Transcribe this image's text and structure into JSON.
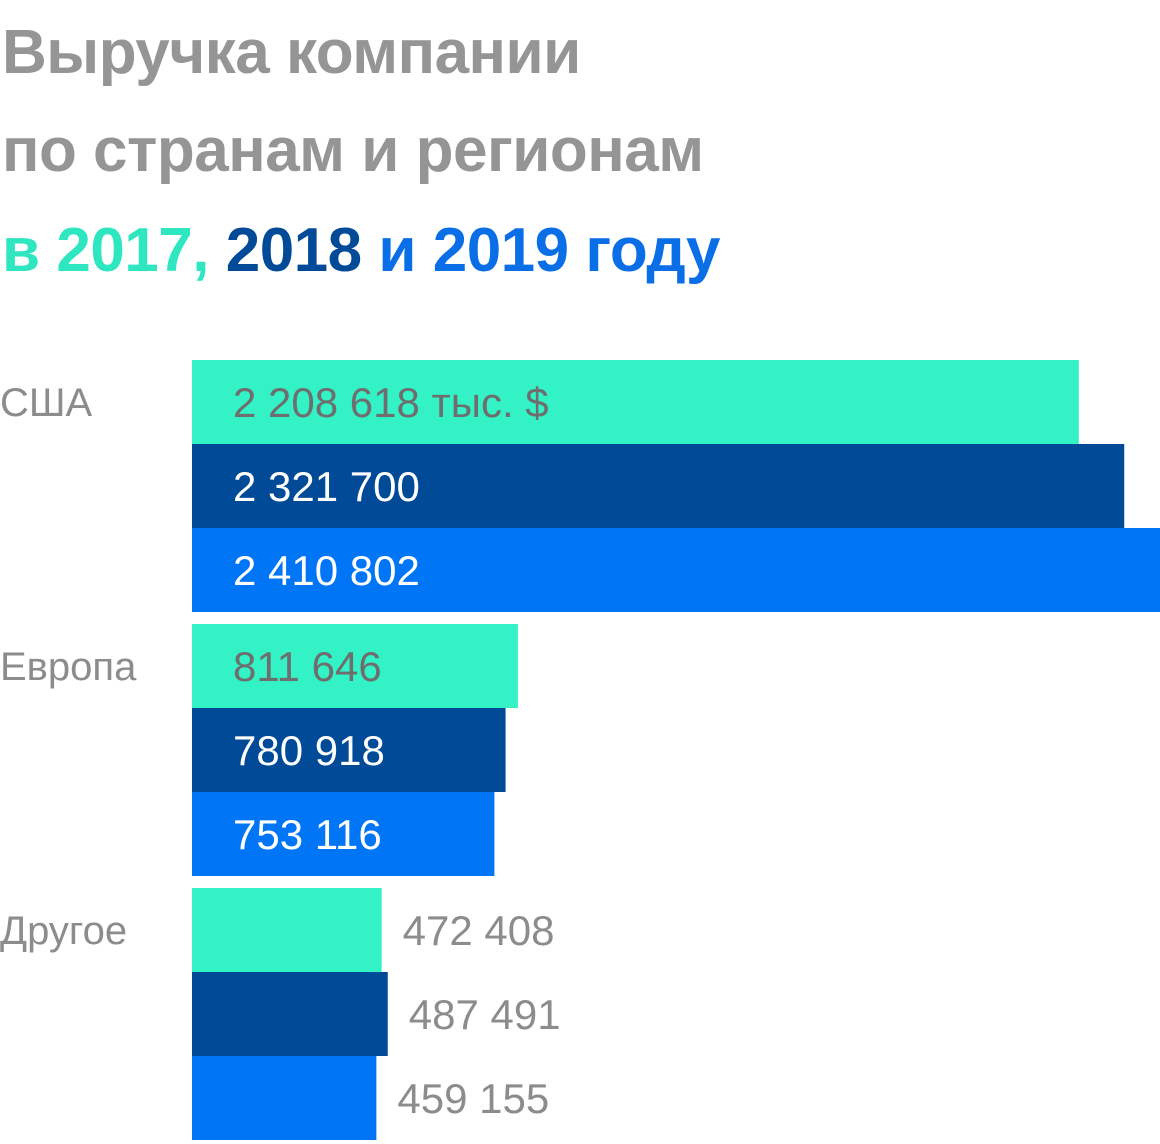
{
  "title": {
    "line1": "Выручка компании",
    "line2": "по странам и регионам",
    "line3_parts": [
      {
        "text": "в 2017, ",
        "color": "#2ee6bf"
      },
      {
        "text": "2018 ",
        "color": "#004a97"
      },
      {
        "text": "и 2019 году",
        "color": "#0a6ee6"
      }
    ]
  },
  "colors": {
    "title_gray": "#959595",
    "series_2017": "#33f2c6",
    "series_2018": "#004a97",
    "series_2019": "#0075f6",
    "label_gray": "#8c8c8c"
  },
  "chart_data": {
    "type": "bar",
    "orientation": "horizontal",
    "title": "Выручка компании по странам и регионам в 2017, 2018 и 2019 году",
    "unit": "тыс. $",
    "categories": [
      "США",
      "Европа",
      "Другое"
    ],
    "series": [
      {
        "name": "2017",
        "values": [
          2208618,
          811646,
          472408
        ]
      },
      {
        "name": "2018",
        "values": [
          2321700,
          780918,
          487491
        ]
      },
      {
        "name": "2019",
        "values": [
          2410802,
          753116,
          459155
        ]
      }
    ],
    "value_labels": [
      [
        "2 208 618 тыс. $",
        "2 321 700",
        "2 410 802"
      ],
      [
        "811 646",
        "780 918",
        "753 116"
      ],
      [
        "472 408",
        "487 491",
        "459 155"
      ]
    ],
    "xlim": [
      0,
      2410802
    ],
    "grid": false,
    "legend": "none"
  }
}
